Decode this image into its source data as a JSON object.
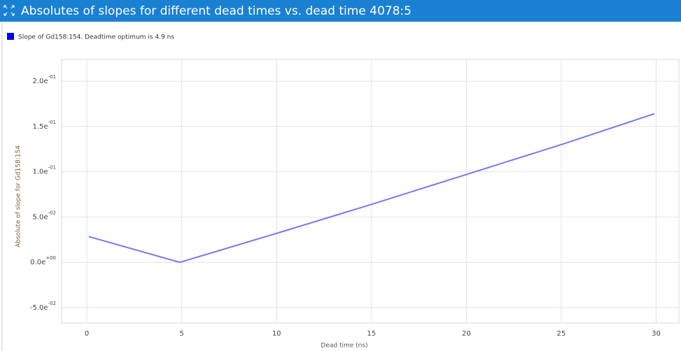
{
  "chart_data": {
    "type": "line",
    "title": "Absolutes of slopes for different dead times vs. dead time 4078:5",
    "x_label": "Dead time (ns)",
    "y_label": "Absolute of slope for Gd158:154",
    "x": [
      0.1,
      4.9,
      10,
      15,
      20,
      25,
      29.9
    ],
    "series": [
      {
        "name": "Slope of Gd158:154. Deadtime optimum is 4.9 ns",
        "color": "#7878f0",
        "legend_color": "#0000ff",
        "values": [
          0.0285,
          0.0,
          0.032,
          0.064,
          0.097,
          0.13,
          0.164
        ]
      }
    ],
    "xlim": [
      -1.33,
      31.2
    ],
    "xticks": [
      0,
      5,
      10,
      15,
      20,
      25,
      30
    ],
    "ylim": [
      -0.067,
      0.224
    ],
    "yticks": [
      {
        "value": -0.05,
        "label": "-5.0e-02"
      },
      {
        "value": 0,
        "label": "0.0e+00"
      },
      {
        "value": 0.05,
        "label": "5.0e-02"
      },
      {
        "value": 0.1,
        "label": "1.0e-01"
      },
      {
        "value": 0.15,
        "label": "1.5e-01"
      },
      {
        "value": 0.2,
        "label": "2.0e-01"
      }
    ],
    "grid": true
  }
}
